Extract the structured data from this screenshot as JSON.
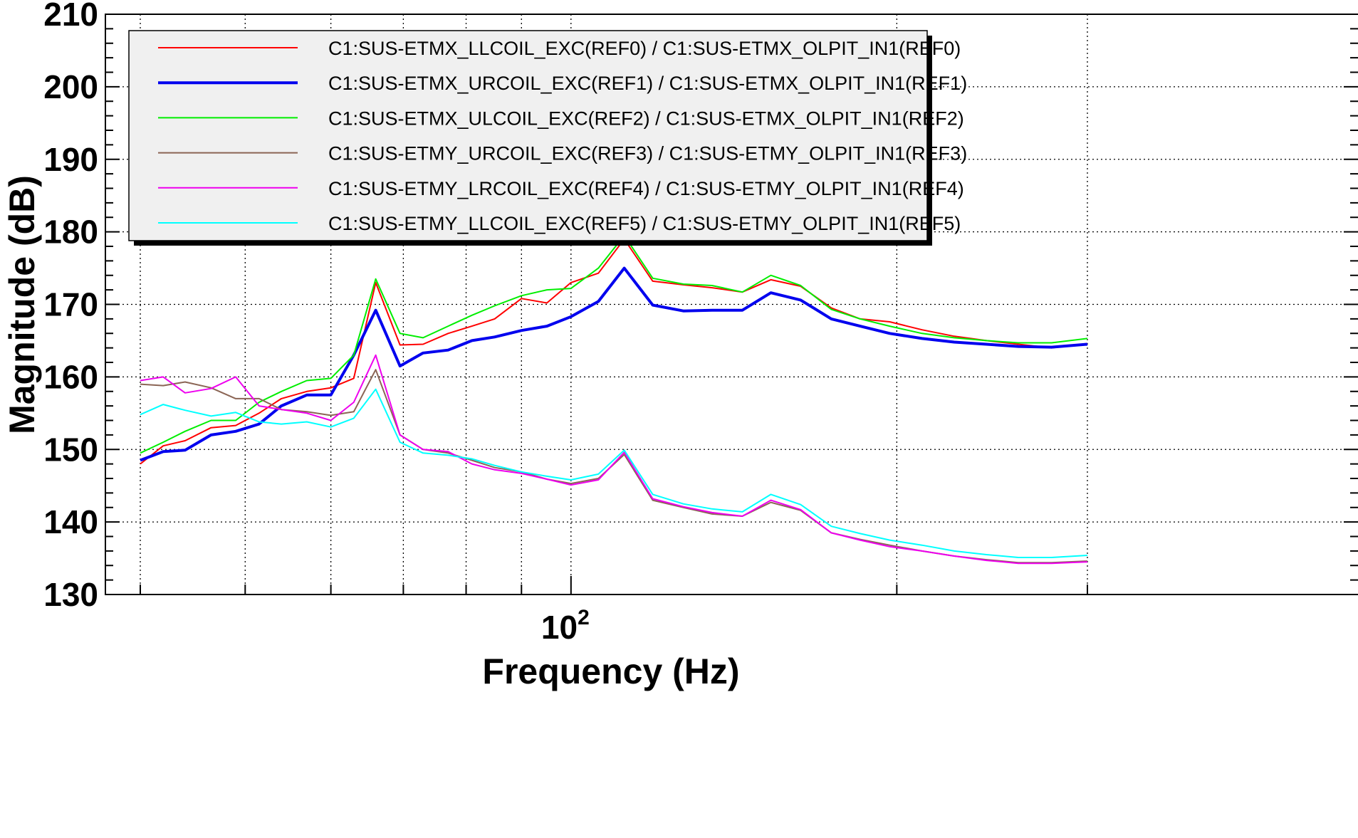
{
  "chart_data": {
    "type": "line",
    "xlabel": "Frequency (Hz)",
    "ylabel": "Magnitude (dB)",
    "x_scale": "log",
    "xlim": [
      40,
      300
    ],
    "ylim": [
      130,
      210
    ],
    "yticks": [
      130,
      140,
      150,
      160,
      170,
      180,
      190,
      200,
      210
    ],
    "ytick_labels": [
      "130",
      "140",
      "150",
      "160",
      "170",
      "180",
      "190",
      "200",
      "210"
    ],
    "xtick_major": 100,
    "xtick_label_base": "10",
    "xtick_label_exp": "2",
    "grid": true,
    "legend_position": "top",
    "x": [
      40,
      42,
      44,
      46.5,
      49,
      51.5,
      54,
      57,
      60,
      63,
      66,
      69.5,
      73,
      77,
      81,
      85,
      90,
      95,
      100,
      106,
      112,
      119,
      127,
      135,
      144,
      153,
      163,
      174,
      185,
      197,
      211,
      226,
      242,
      259,
      278,
      300
    ],
    "series": [
      {
        "name": "C1:SUS-ETMX_LLCOIL_EXC(REF0) / C1:SUS-ETMX_OLPIT_IN1(REF0)",
        "color": "#ff0000",
        "width": 2,
        "values": [
          148.0,
          150.5,
          151.2,
          153.0,
          153.3,
          155.0,
          157.0,
          158.0,
          158.5,
          159.8,
          173.0,
          164.4,
          164.5,
          166.0,
          167.0,
          168.0,
          170.8,
          170.2,
          173.0,
          174.3,
          179.0,
          173.2,
          172.7,
          172.3,
          171.7,
          173.4,
          172.5,
          169.5,
          168.0,
          167.6,
          166.5,
          165.6,
          165.0,
          164.5,
          164.0,
          164.6
        ]
      },
      {
        "name": "C1:SUS-ETMX_URCOIL_EXC(REF1) / C1:SUS-ETMX_OLPIT_IN1(REF1)",
        "color": "#0000ee",
        "width": 4,
        "values": [
          148.5,
          149.7,
          149.9,
          152.0,
          152.5,
          153.5,
          156.0,
          157.5,
          157.5,
          163.0,
          169.2,
          161.5,
          163.3,
          163.7,
          165.0,
          165.5,
          166.4,
          167.0,
          168.3,
          170.4,
          175.0,
          169.9,
          169.1,
          169.2,
          169.2,
          171.6,
          170.6,
          168.0,
          167.0,
          166.0,
          165.3,
          164.8,
          164.5,
          164.2,
          164.1,
          164.5
        ]
      },
      {
        "name": "C1:SUS-ETMX_ULCOIL_EXC(REF2) / C1:SUS-ETMX_OLPIT_IN1(REF2)",
        "color": "#00ee00",
        "width": 2,
        "values": [
          149.5,
          151.0,
          152.5,
          154.0,
          154.0,
          156.5,
          158.0,
          159.5,
          159.8,
          163.0,
          173.5,
          166.0,
          165.4,
          167.0,
          168.5,
          169.8,
          171.2,
          172.0,
          172.2,
          175.0,
          179.5,
          173.6,
          172.8,
          172.6,
          171.7,
          174.0,
          172.6,
          169.3,
          168.0,
          167.0,
          166.0,
          165.4,
          165.0,
          164.7,
          164.7,
          165.3
        ]
      },
      {
        "name": "C1:SUS-ETMY_URCOIL_EXC(REF3) / C1:SUS-ETMY_OLPIT_IN1(REF3)",
        "color": "#8b6555",
        "width": 2,
        "values": [
          159.0,
          158.8,
          159.3,
          158.5,
          157.0,
          157.0,
          155.5,
          155.2,
          154.7,
          155.2,
          161.0,
          152.0,
          150.0,
          149.5,
          148.5,
          147.5,
          146.9,
          145.9,
          145.3,
          146.0,
          149.3,
          143.0,
          142.0,
          141.1,
          140.8,
          142.7,
          141.6,
          138.5,
          137.6,
          136.8,
          136.0,
          135.3,
          134.8,
          134.4,
          134.4,
          134.6
        ]
      },
      {
        "name": "C1:SUS-ETMY_LRCOIL_EXC(REF4) / C1:SUS-ETMY_OLPIT_IN1(REF4)",
        "color": "#ee00ee",
        "width": 2,
        "values": [
          159.5,
          160.0,
          157.8,
          158.4,
          160.0,
          156.0,
          155.5,
          155.0,
          154.0,
          156.5,
          163.0,
          152.0,
          150.0,
          149.7,
          148.0,
          147.2,
          146.7,
          145.9,
          145.1,
          145.8,
          149.6,
          143.2,
          142.1,
          141.3,
          140.8,
          143.0,
          141.7,
          138.5,
          137.5,
          136.6,
          136.0,
          135.3,
          134.7,
          134.3,
          134.3,
          134.5
        ]
      },
      {
        "name": "C1:SUS-ETMY_LLCOIL_EXC(REF5) / C1:SUS-ETMY_OLPIT_IN1(REF5)",
        "color": "#00ffff",
        "width": 2,
        "values": [
          154.8,
          156.2,
          155.4,
          154.6,
          155.1,
          153.8,
          153.5,
          153.8,
          153.1,
          154.3,
          158.3,
          151.0,
          149.5,
          149.2,
          148.7,
          147.8,
          146.9,
          146.3,
          145.8,
          146.6,
          149.9,
          143.8,
          142.5,
          141.8,
          141.4,
          143.8,
          142.4,
          139.4,
          138.4,
          137.5,
          136.8,
          136.0,
          135.5,
          135.1,
          135.1,
          135.4
        ]
      }
    ]
  }
}
